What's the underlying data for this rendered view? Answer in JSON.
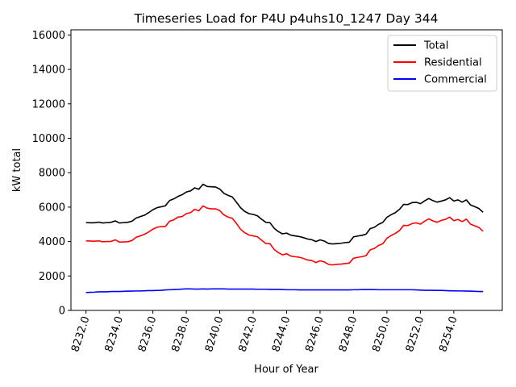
{
  "chart_data": {
    "type": "line",
    "title": "Timeseries Load for P4U p4uhs10_1247  Day 344",
    "xlabel": "Hour of Year",
    "ylabel": "kW total",
    "xlim": [
      8231.1,
      8256.9
    ],
    "ylim": [
      0,
      16300
    ],
    "xticks": [
      8232,
      8234,
      8236,
      8238,
      8240,
      8242,
      8244,
      8246,
      8248,
      8250,
      8252,
      8254
    ],
    "xtick_labels": [
      "8232.0",
      "8234.0",
      "8236.0",
      "8238.0",
      "8240.0",
      "8242.0",
      "8244.0",
      "8246.0",
      "8248.0",
      "8250.0",
      "8252.0",
      "8254.0"
    ],
    "yticks": [
      0,
      2000,
      4000,
      6000,
      8000,
      10000,
      12000,
      14000,
      16000
    ],
    "ytick_labels": [
      "0",
      "2000",
      "4000",
      "6000",
      "8000",
      "10000",
      "12000",
      "14000",
      "16000"
    ],
    "legend_position": "top-right",
    "x": [
      8232.0,
      8232.25,
      8232.5,
      8232.75,
      8233.0,
      8233.25,
      8233.5,
      8233.75,
      8234.0,
      8234.25,
      8234.5,
      8234.75,
      8235.0,
      8235.25,
      8235.5,
      8235.75,
      8236.0,
      8236.25,
      8236.5,
      8236.75,
      8237.0,
      8237.25,
      8237.5,
      8237.75,
      8238.0,
      8238.25,
      8238.5,
      8238.75,
      8239.0,
      8239.25,
      8239.5,
      8239.75,
      8240.0,
      8240.25,
      8240.5,
      8240.75,
      8241.0,
      8241.25,
      8241.5,
      8241.75,
      8242.0,
      8242.25,
      8242.5,
      8242.75,
      8243.0,
      8243.25,
      8243.5,
      8243.75,
      8244.0,
      8244.25,
      8244.5,
      8244.75,
      8245.0,
      8245.25,
      8245.5,
      8245.75,
      8246.0,
      8246.25,
      8246.5,
      8246.75,
      8247.0,
      8247.25,
      8247.5,
      8247.75,
      8248.0,
      8248.25,
      8248.5,
      8248.75,
      8249.0,
      8249.25,
      8249.5,
      8249.75,
      8250.0,
      8250.25,
      8250.5,
      8250.75,
      8251.0,
      8251.25,
      8251.5,
      8251.75,
      8252.0,
      8252.25,
      8252.5,
      8252.75,
      8253.0,
      8253.25,
      8253.5,
      8253.75,
      8254.0,
      8254.25,
      8254.5,
      8254.75,
      8255.0,
      8255.25,
      8255.5,
      8255.75
    ],
    "series": [
      {
        "name": "Total",
        "color": "#000000",
        "values": [
          5100,
          5090,
          5090,
          5130,
          5080,
          5100,
          5120,
          5200,
          5080,
          5100,
          5120,
          5180,
          5370,
          5450,
          5530,
          5680,
          5850,
          5970,
          6020,
          6080,
          6380,
          6480,
          6620,
          6720,
          6880,
          6940,
          7120,
          7040,
          7330,
          7200,
          7180,
          7170,
          7050,
          6800,
          6680,
          6590,
          6280,
          5960,
          5750,
          5620,
          5580,
          5500,
          5300,
          5120,
          5100,
          4780,
          4580,
          4450,
          4490,
          4370,
          4330,
          4290,
          4230,
          4150,
          4110,
          4000,
          4100,
          4030,
          3890,
          3860,
          3880,
          3900,
          3940,
          3960,
          4270,
          4320,
          4360,
          4430,
          4750,
          4830,
          5000,
          5110,
          5410,
          5560,
          5680,
          5870,
          6160,
          6150,
          6260,
          6280,
          6200,
          6360,
          6500,
          6380,
          6290,
          6350,
          6420,
          6550,
          6360,
          6420,
          6290,
          6420,
          6130,
          6030,
          5920,
          5700
        ]
      },
      {
        "name": "Residential",
        "color": "#ff0000",
        "values": [
          4040,
          4030,
          4020,
          4040,
          3990,
          4000,
          4010,
          4100,
          3970,
          3980,
          3990,
          4060,
          4250,
          4330,
          4420,
          4560,
          4720,
          4830,
          4870,
          4880,
          5180,
          5260,
          5420,
          5450,
          5620,
          5680,
          5870,
          5790,
          6070,
          5940,
          5900,
          5900,
          5800,
          5550,
          5420,
          5350,
          5050,
          4710,
          4510,
          4380,
          4330,
          4280,
          4080,
          3890,
          3880,
          3550,
          3360,
          3230,
          3290,
          3160,
          3120,
          3090,
          3020,
          2930,
          2900,
          2780,
          2880,
          2820,
          2680,
          2640,
          2680,
          2690,
          2720,
          2750,
          3030,
          3080,
          3120,
          3180,
          3520,
          3600,
          3770,
          3870,
          4190,
          4350,
          4470,
          4640,
          4940,
          4930,
          5040,
          5090,
          5010,
          5180,
          5320,
          5200,
          5120,
          5230,
          5290,
          5420,
          5210,
          5280,
          5160,
          5300,
          5010,
          4920,
          4820,
          4600
        ]
      },
      {
        "name": "Commercial",
        "color": "#0000ff",
        "values": [
          1040,
          1050,
          1060,
          1080,
          1080,
          1080,
          1100,
          1100,
          1100,
          1110,
          1120,
          1120,
          1130,
          1130,
          1140,
          1150,
          1150,
          1160,
          1170,
          1190,
          1200,
          1210,
          1220,
          1240,
          1250,
          1250,
          1240,
          1240,
          1250,
          1240,
          1250,
          1250,
          1250,
          1250,
          1240,
          1240,
          1240,
          1240,
          1240,
          1240,
          1240,
          1230,
          1230,
          1230,
          1220,
          1220,
          1220,
          1210,
          1200,
          1200,
          1200,
          1190,
          1190,
          1190,
          1190,
          1190,
          1190,
          1190,
          1190,
          1190,
          1190,
          1190,
          1190,
          1190,
          1200,
          1200,
          1210,
          1210,
          1210,
          1210,
          1200,
          1200,
          1200,
          1200,
          1200,
          1200,
          1200,
          1200,
          1200,
          1190,
          1180,
          1170,
          1170,
          1170,
          1160,
          1160,
          1150,
          1140,
          1140,
          1130,
          1130,
          1120,
          1120,
          1110,
          1100,
          1100
        ]
      }
    ]
  }
}
